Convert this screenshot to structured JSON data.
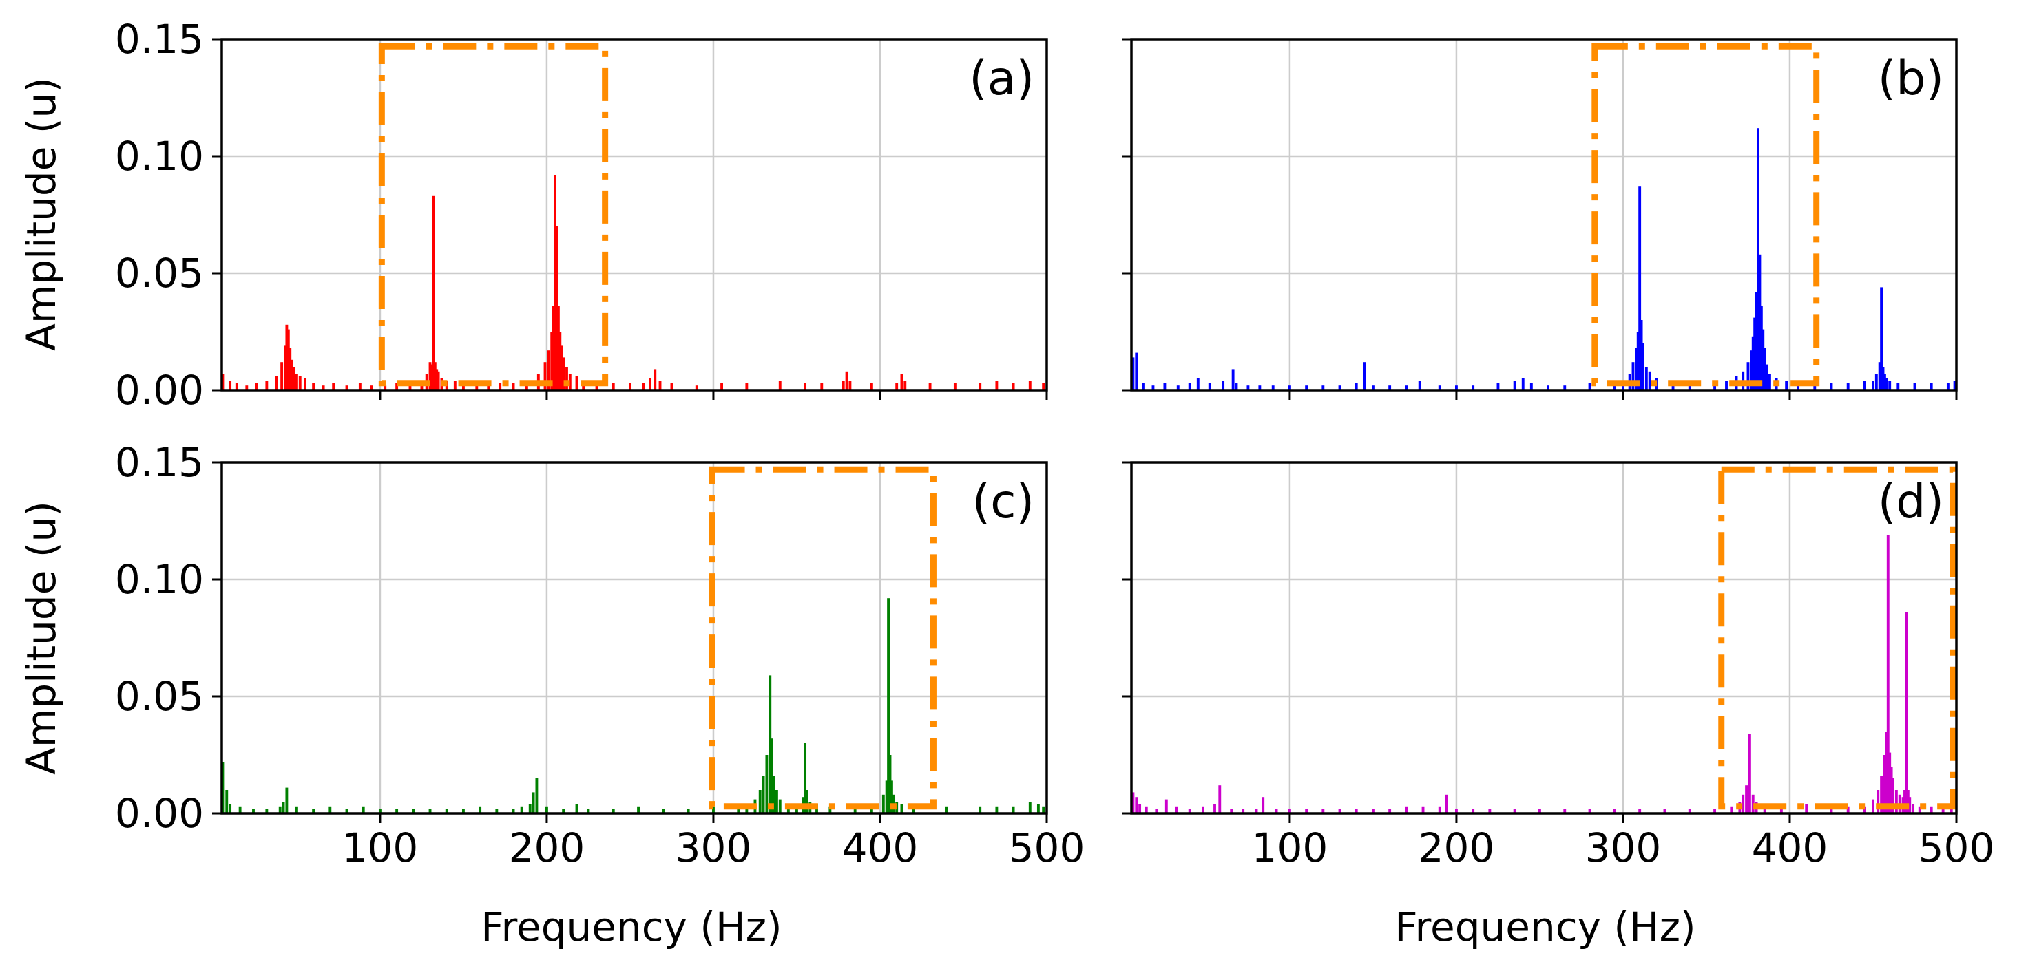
{
  "figure": {
    "xlabel": "Frequency (Hz)",
    "ylabel": "Amplitude (u)",
    "xlim": [
      5,
      500
    ],
    "ylim": [
      0,
      0.15
    ],
    "xticks": [
      100,
      200,
      300,
      400,
      500
    ],
    "xtick_labels": [
      "100",
      "200",
      "300",
      "400",
      "500"
    ],
    "yticks": [
      0.0,
      0.05,
      0.1,
      0.15
    ],
    "ytick_labels": [
      "0.00",
      "0.05",
      "0.10",
      "0.15"
    ],
    "grid": true,
    "box_style": "dash-dot",
    "box_color": "#ff8c00",
    "box_ylim": [
      0.003,
      0.147
    ]
  },
  "chart_data": [
    {
      "type": "bar",
      "panel": "a",
      "label": "(a)",
      "color": "#ff0000",
      "grid": true,
      "highlight_box": {
        "x_range": [
          101,
          235
        ],
        "y_range": [
          0.003,
          0.147
        ]
      },
      "x": [
        6,
        10,
        14,
        20,
        26,
        32,
        38,
        41,
        43,
        44,
        45,
        46,
        47,
        48,
        50,
        52,
        55,
        60,
        66,
        72,
        80,
        88,
        95,
        103,
        110,
        118,
        125,
        128,
        130,
        131,
        132,
        133,
        134,
        135,
        137,
        140,
        145,
        150,
        158,
        165,
        172,
        180,
        188,
        195,
        199,
        201,
        203,
        204,
        205,
        206,
        207,
        208,
        209,
        210,
        212,
        214,
        218,
        222,
        230,
        240,
        250,
        258,
        262,
        265,
        268,
        275,
        290,
        305,
        320,
        340,
        355,
        365,
        378,
        380,
        382,
        395,
        410,
        413,
        415,
        430,
        445,
        460,
        470,
        480,
        490,
        498
      ],
      "values": [
        0.007,
        0.004,
        0.003,
        0.002,
        0.003,
        0.004,
        0.006,
        0.012,
        0.019,
        0.028,
        0.026,
        0.018,
        0.013,
        0.01,
        0.007,
        0.006,
        0.005,
        0.003,
        0.002,
        0.003,
        0.002,
        0.003,
        0.002,
        0.002,
        0.003,
        0.003,
        0.004,
        0.007,
        0.012,
        0.011,
        0.083,
        0.012,
        0.009,
        0.008,
        0.005,
        0.004,
        0.004,
        0.003,
        0.004,
        0.003,
        0.003,
        0.003,
        0.004,
        0.007,
        0.012,
        0.017,
        0.025,
        0.036,
        0.092,
        0.07,
        0.036,
        0.025,
        0.019,
        0.014,
        0.01,
        0.007,
        0.006,
        0.004,
        0.004,
        0.003,
        0.003,
        0.003,
        0.005,
        0.009,
        0.004,
        0.003,
        0.002,
        0.003,
        0.003,
        0.004,
        0.003,
        0.003,
        0.004,
        0.008,
        0.004,
        0.003,
        0.003,
        0.007,
        0.004,
        0.003,
        0.003,
        0.003,
        0.004,
        0.003,
        0.004,
        0.003
      ]
    },
    {
      "type": "bar",
      "panel": "b",
      "label": "(b)",
      "color": "#0000ff",
      "grid": true,
      "highlight_box": {
        "x_range": [
          283,
          416
        ],
        "y_range": [
          0.003,
          0.147
        ]
      },
      "x": [
        6,
        8,
        12,
        18,
        25,
        33,
        40,
        45,
        52,
        60,
        66,
        68,
        75,
        82,
        90,
        100,
        110,
        120,
        130,
        140,
        145,
        150,
        160,
        170,
        178,
        190,
        200,
        210,
        225,
        235,
        240,
        245,
        255,
        265,
        280,
        295,
        300,
        304,
        306,
        308,
        309,
        310,
        311,
        312,
        314,
        316,
        320,
        330,
        340,
        355,
        362,
        368,
        372,
        375,
        377,
        378,
        379,
        380,
        381,
        382,
        383,
        384,
        385,
        386,
        388,
        392,
        398,
        405,
        415,
        425,
        435,
        445,
        450,
        452,
        454,
        455,
        456,
        457,
        458,
        460,
        465,
        475,
        485,
        495,
        499
      ],
      "values": [
        0.014,
        0.016,
        0.003,
        0.002,
        0.003,
        0.002,
        0.003,
        0.005,
        0.003,
        0.004,
        0.009,
        0.003,
        0.002,
        0.002,
        0.002,
        0.002,
        0.002,
        0.002,
        0.002,
        0.003,
        0.012,
        0.002,
        0.002,
        0.002,
        0.004,
        0.002,
        0.002,
        0.002,
        0.003,
        0.004,
        0.005,
        0.003,
        0.002,
        0.002,
        0.003,
        0.003,
        0.004,
        0.007,
        0.012,
        0.018,
        0.025,
        0.087,
        0.03,
        0.02,
        0.01,
        0.008,
        0.005,
        0.004,
        0.003,
        0.003,
        0.004,
        0.006,
        0.008,
        0.012,
        0.017,
        0.023,
        0.031,
        0.042,
        0.112,
        0.058,
        0.036,
        0.026,
        0.018,
        0.011,
        0.007,
        0.005,
        0.004,
        0.003,
        0.003,
        0.003,
        0.003,
        0.004,
        0.004,
        0.007,
        0.012,
        0.044,
        0.01,
        0.007,
        0.005,
        0.004,
        0.003,
        0.003,
        0.003,
        0.003,
        0.004
      ]
    },
    {
      "type": "bar",
      "panel": "c",
      "label": "(c)",
      "color": "#008000",
      "grid": true,
      "highlight_box": {
        "x_range": [
          299,
          432
        ],
        "y_range": [
          0.003,
          0.147
        ]
      },
      "x": [
        6,
        8,
        10,
        16,
        24,
        32,
        40,
        42,
        44,
        50,
        60,
        70,
        80,
        90,
        100,
        110,
        120,
        130,
        140,
        150,
        160,
        170,
        180,
        185,
        190,
        192,
        194,
        200,
        210,
        218,
        225,
        240,
        255,
        270,
        285,
        300,
        315,
        320,
        325,
        328,
        330,
        332,
        334,
        335,
        336,
        338,
        340,
        345,
        350,
        354,
        355,
        356,
        358,
        362,
        370,
        385,
        395,
        402,
        404,
        405,
        406,
        407,
        408,
        410,
        413,
        420,
        440,
        460,
        470,
        480,
        490,
        495,
        498
      ],
      "values": [
        0.022,
        0.01,
        0.004,
        0.003,
        0.002,
        0.002,
        0.003,
        0.005,
        0.011,
        0.003,
        0.002,
        0.003,
        0.002,
        0.003,
        0.002,
        0.002,
        0.002,
        0.002,
        0.002,
        0.002,
        0.003,
        0.002,
        0.002,
        0.003,
        0.004,
        0.009,
        0.015,
        0.003,
        0.002,
        0.004,
        0.002,
        0.002,
        0.003,
        0.002,
        0.002,
        0.003,
        0.003,
        0.004,
        0.006,
        0.01,
        0.016,
        0.025,
        0.059,
        0.032,
        0.016,
        0.01,
        0.006,
        0.004,
        0.004,
        0.007,
        0.03,
        0.01,
        0.005,
        0.004,
        0.003,
        0.003,
        0.004,
        0.008,
        0.014,
        0.092,
        0.025,
        0.014,
        0.008,
        0.005,
        0.004,
        0.003,
        0.003,
        0.003,
        0.003,
        0.003,
        0.005,
        0.004,
        0.003
      ]
    },
    {
      "type": "bar",
      "panel": "d",
      "label": "(d)",
      "color": "#cc00cc",
      "grid": true,
      "highlight_box": {
        "x_range": [
          359,
          498
        ],
        "y_range": [
          0.003,
          0.147
        ]
      },
      "x": [
        6,
        8,
        10,
        14,
        20,
        26,
        32,
        40,
        48,
        55,
        58,
        65,
        72,
        80,
        84,
        92,
        100,
        110,
        120,
        130,
        140,
        150,
        160,
        170,
        180,
        190,
        194,
        200,
        210,
        220,
        235,
        250,
        265,
        280,
        295,
        310,
        325,
        340,
        355,
        365,
        370,
        372,
        374,
        376,
        378,
        380,
        385,
        395,
        410,
        425,
        435,
        445,
        450,
        453,
        455,
        457,
        458,
        459,
        460,
        461,
        462,
        464,
        466,
        468,
        469,
        470,
        471,
        472,
        474,
        478,
        485,
        492,
        497
      ],
      "values": [
        0.009,
        0.007,
        0.004,
        0.003,
        0.002,
        0.006,
        0.003,
        0.002,
        0.003,
        0.004,
        0.012,
        0.002,
        0.002,
        0.002,
        0.007,
        0.002,
        0.002,
        0.002,
        0.002,
        0.002,
        0.002,
        0.002,
        0.002,
        0.003,
        0.003,
        0.003,
        0.008,
        0.002,
        0.002,
        0.002,
        0.002,
        0.002,
        0.002,
        0.002,
        0.002,
        0.002,
        0.002,
        0.002,
        0.002,
        0.003,
        0.005,
        0.008,
        0.012,
        0.034,
        0.008,
        0.005,
        0.004,
        0.003,
        0.004,
        0.003,
        0.003,
        0.003,
        0.006,
        0.01,
        0.016,
        0.025,
        0.035,
        0.119,
        0.026,
        0.02,
        0.015,
        0.01,
        0.008,
        0.007,
        0.01,
        0.086,
        0.01,
        0.007,
        0.004,
        0.003,
        0.003,
        0.003,
        0.002
      ]
    }
  ]
}
